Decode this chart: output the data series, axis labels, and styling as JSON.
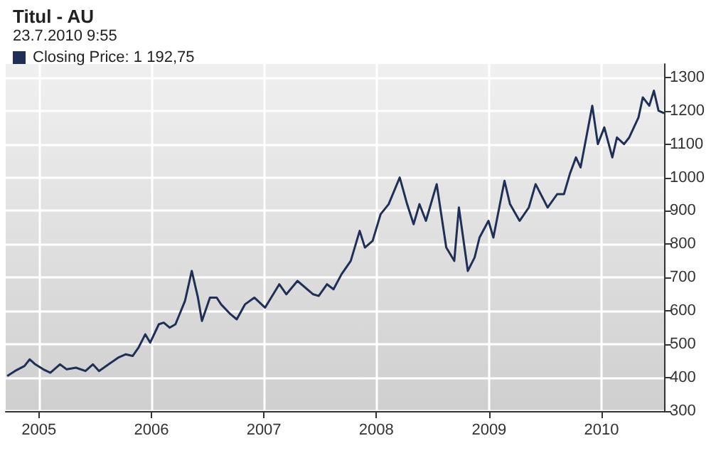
{
  "chart_data": {
    "type": "line",
    "title": "Titul - AU",
    "subtitle": "23.7.2010 9:55",
    "x": [
      "2004-09-20",
      "2004-10-15",
      "2004-11-15",
      "2004-12-02",
      "2004-12-20",
      "2005-01-15",
      "2005-02-07",
      "2005-03-10",
      "2005-04-01",
      "2005-05-01",
      "2005-06-01",
      "2005-06-25",
      "2005-07-15",
      "2005-08-15",
      "2005-09-15",
      "2005-10-10",
      "2005-11-01",
      "2005-11-20",
      "2005-12-12",
      "2005-12-28",
      "2006-01-25",
      "2006-02-10",
      "2006-03-01",
      "2006-03-20",
      "2006-04-20",
      "2006-05-12",
      "2006-06-01",
      "2006-06-14",
      "2006-07-10",
      "2006-08-01",
      "2006-08-15",
      "2006-09-15",
      "2006-10-05",
      "2006-11-01",
      "2006-12-01",
      "2007-01-05",
      "2007-02-20",
      "2007-03-15",
      "2007-04-20",
      "2007-06-10",
      "2007-06-28",
      "2007-07-25",
      "2007-08-15",
      "2007-09-10",
      "2007-10-10",
      "2007-11-08",
      "2007-11-25",
      "2007-12-20",
      "2008-01-15",
      "2008-02-10",
      "2008-03-17",
      "2008-04-10",
      "2008-05-01",
      "2008-05-20",
      "2008-06-10",
      "2008-07-15",
      "2008-08-15",
      "2008-09-10",
      "2008-09-25",
      "2008-10-24",
      "2008-11-15",
      "2008-12-01",
      "2008-12-30",
      "2009-01-15",
      "2009-02-20",
      "2009-03-10",
      "2009-04-10",
      "2009-05-10",
      "2009-06-01",
      "2009-07-10",
      "2009-08-10",
      "2009-09-01",
      "2009-09-20",
      "2009-10-10",
      "2009-10-25",
      "2009-12-02",
      "2009-12-20",
      "2010-01-10",
      "2010-02-05",
      "2010-02-20",
      "2010-03-15",
      "2010-04-01",
      "2010-05-01",
      "2010-05-15",
      "2010-06-05",
      "2010-06-20",
      "2010-07-05",
      "2010-07-23"
    ],
    "series": [
      {
        "name": "Closing Price: 1 192,75",
        "color": "#1f2f55",
        "values": [
          405,
          420,
          435,
          455,
          440,
          425,
          415,
          440,
          425,
          430,
          420,
          440,
          420,
          440,
          460,
          470,
          465,
          490,
          530,
          505,
          560,
          565,
          550,
          560,
          630,
          720,
          640,
          570,
          640,
          640,
          620,
          590,
          575,
          620,
          640,
          610,
          680,
          650,
          690,
          650,
          645,
          680,
          665,
          710,
          750,
          840,
          790,
          810,
          890,
          920,
          1000,
          920,
          860,
          920,
          870,
          980,
          790,
          750,
          910,
          720,
          760,
          820,
          870,
          820,
          990,
          920,
          870,
          910,
          980,
          910,
          950,
          950,
          1010,
          1060,
          1030,
          1215,
          1100,
          1150,
          1060,
          1120,
          1100,
          1120,
          1180,
          1240,
          1215,
          1260,
          1200,
          1192.75
        ]
      }
    ],
    "xlim": [
      "2004-09-15",
      "2010-07-23"
    ],
    "xticks": [
      {
        "value": "2005-01-01",
        "label": "2005"
      },
      {
        "value": "2006-01-01",
        "label": "2006"
      },
      {
        "value": "2007-01-01",
        "label": "2007"
      },
      {
        "value": "2008-01-01",
        "label": "2008"
      },
      {
        "value": "2009-01-01",
        "label": "2009"
      },
      {
        "value": "2010-01-01",
        "label": "2010"
      }
    ],
    "ylim": [
      300,
      1340
    ],
    "yticks": [
      300,
      400,
      500,
      600,
      700,
      800,
      900,
      1000,
      1100,
      1200,
      1300
    ],
    "grid": true,
    "legend": "top left",
    "marker": "none",
    "line_style": "solid"
  }
}
